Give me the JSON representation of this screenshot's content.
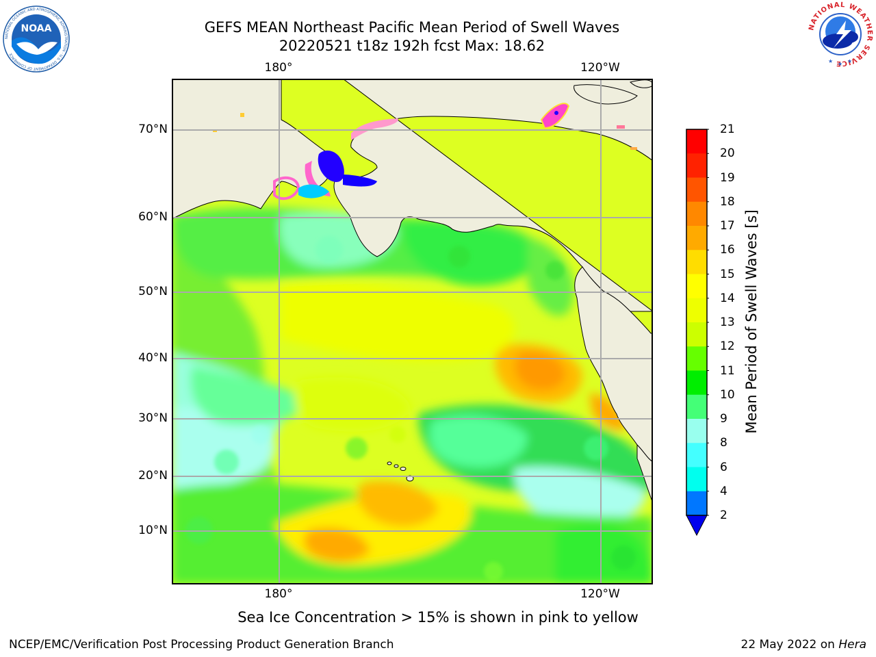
{
  "title": {
    "line1": "GEFS MEAN Northeast Pacific Mean Period of Swell Waves",
    "line2": "20220521 t18z 192h fcst   Max: 18.62"
  },
  "axes": {
    "top_lon_labels": [
      "180°",
      "120°W"
    ],
    "bottom_lon_labels": [
      "180°",
      "120°W"
    ],
    "lat_labels": [
      "70°N",
      "60°N",
      "50°N",
      "40°N",
      "30°N",
      "20°N",
      "10°N"
    ]
  },
  "colorbar": {
    "label": "Mean Period of Swell Waves [s]",
    "ticks": [
      "21",
      "20",
      "19",
      "18",
      "17",
      "16",
      "15",
      "14",
      "13",
      "12",
      "11",
      "10",
      "9",
      "8",
      "6",
      "4",
      "2"
    ],
    "colors": [
      "#ff0000",
      "#ff2200",
      "#ff5500",
      "#ff8800",
      "#ffaa00",
      "#ffdd00",
      "#ffff00",
      "#eeff00",
      "#ccff00",
      "#66ff00",
      "#00ee00",
      "#44ff77",
      "#99ffee",
      "#44ffff",
      "#00ffee",
      "#0077ff",
      "#0000ff"
    ],
    "under_color": "#0000ee"
  },
  "colors": {
    "land": "#efeedd",
    "ocean_base": "#ddff22",
    "grid": "#aaaaaa",
    "ice_pink": "#ff44cc"
  },
  "note": "Sea Ice Concentration > 15% is shown in pink to yellow",
  "footer": {
    "left": "NCEP/EMC/Verification Post Processing Product Generation Branch",
    "date": "22 May 2022 on",
    "machine": "Hera"
  },
  "logos": {
    "noaa_text": "NOAA",
    "noaa_ring": "NATIONAL OCEANIC AND ATMOSPHERIC ADMINISTRATION · U.S. DEPARTMENT OF COMMERCE",
    "nws_ring": "NATIONAL WEATHER SERVICE"
  }
}
